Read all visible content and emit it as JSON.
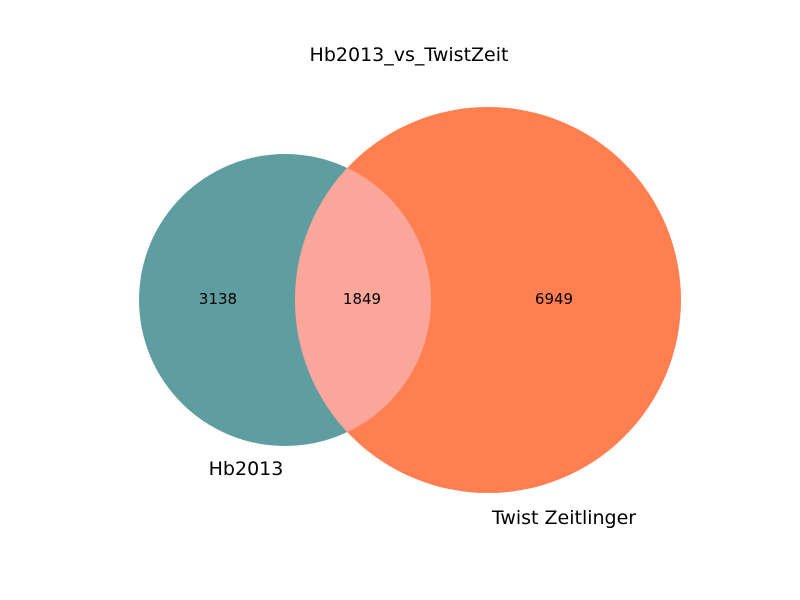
{
  "chart_data": {
    "type": "venn",
    "title": "Hb2013_vs_TwistZeit",
    "sets": [
      {
        "name": "Hb2013",
        "color": "#5f9ea0"
      },
      {
        "name": "Twist Zeitlinger",
        "color": "#ff7f50"
      }
    ],
    "overlap_color": "#fba69a",
    "regions": {
      "only_a": 3138,
      "both": 1849,
      "only_b": 6949
    }
  }
}
